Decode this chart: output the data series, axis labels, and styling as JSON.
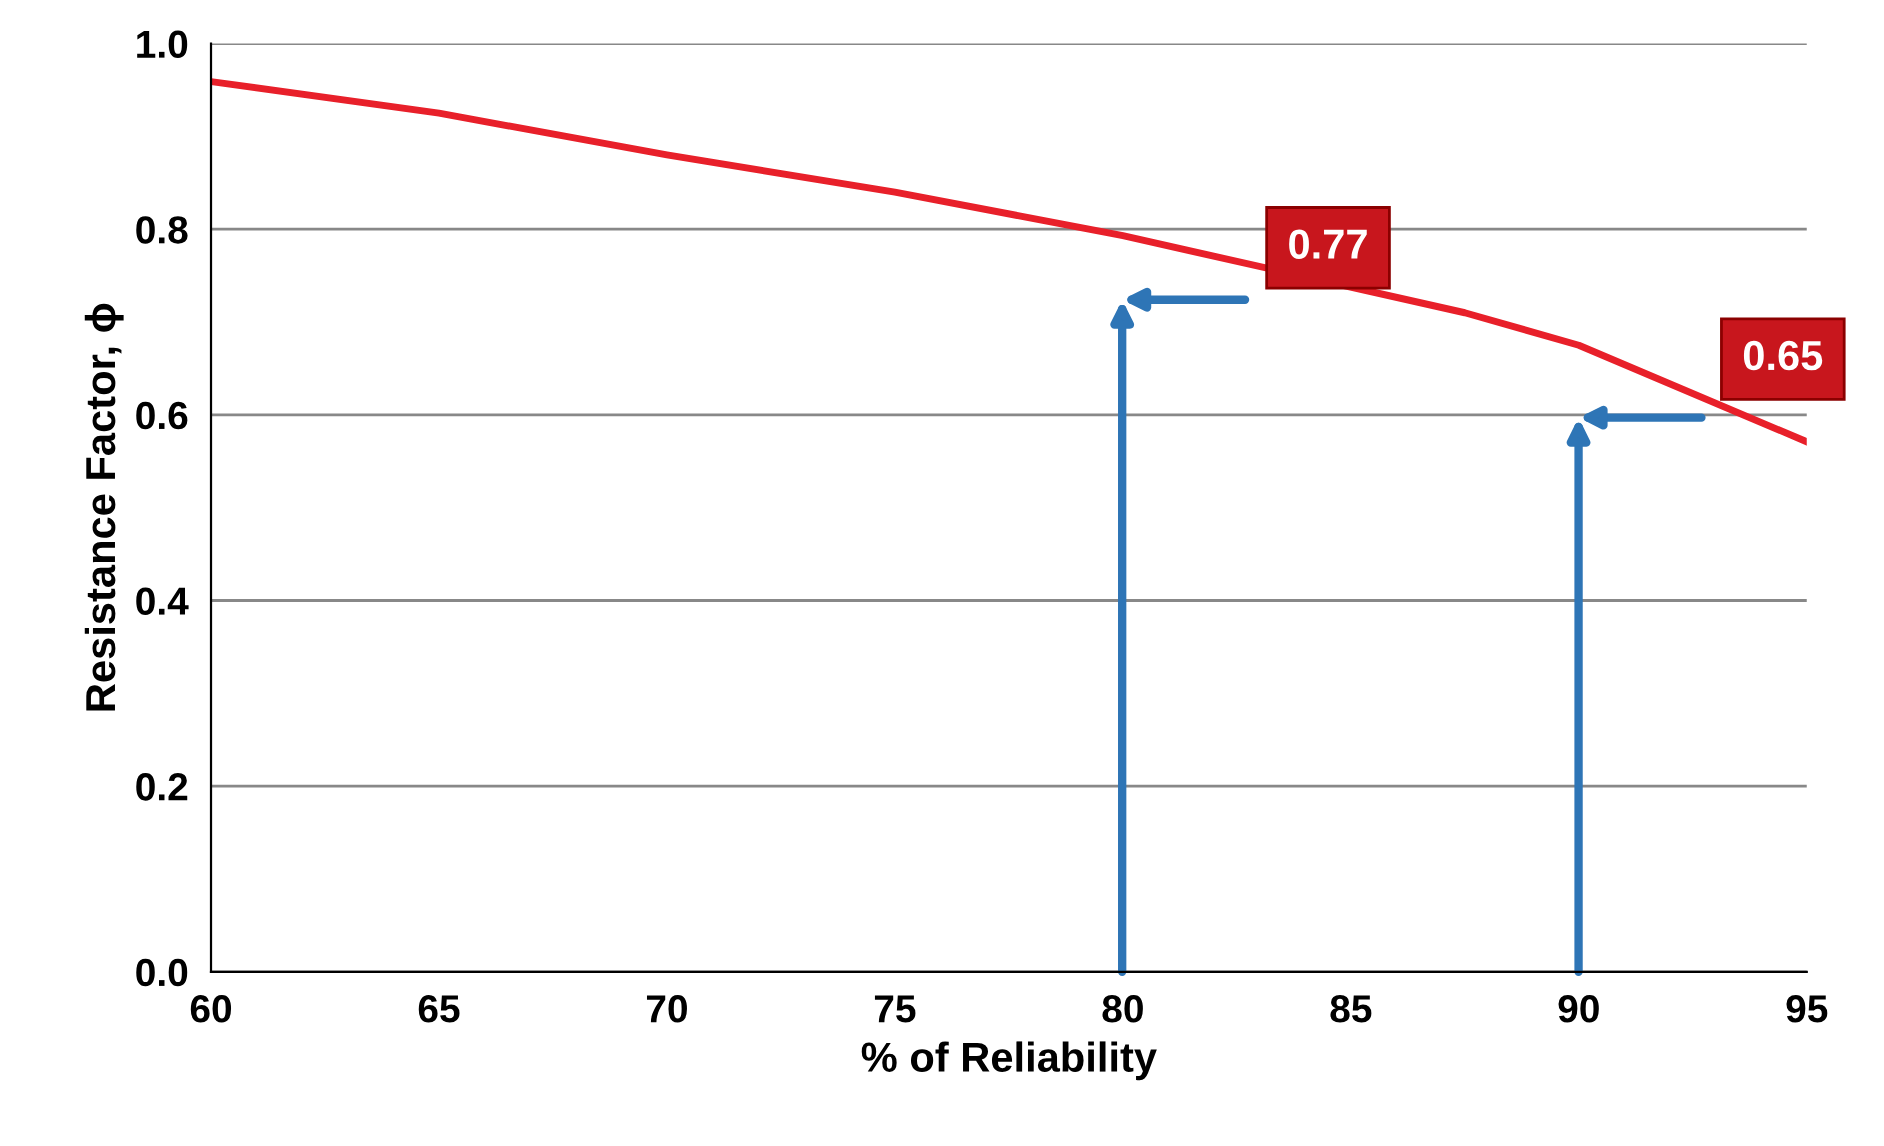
{
  "chart_data": {
    "type": "line",
    "xlabel": "% of Reliability",
    "ylabel": "Resistance Factor, ϕ",
    "x": [
      60,
      65,
      70,
      75,
      80,
      87.5,
      90,
      95
    ],
    "series": [
      {
        "color": "#e8202a",
        "values": [
          0.959,
          0.925,
          0.88,
          0.84,
          0.793,
          0.71,
          0.675,
          0.571
        ]
      }
    ],
    "xlim": [
      60,
      95
    ],
    "xticks": [
      60,
      65,
      70,
      75,
      80,
      85,
      90,
      95
    ],
    "ylim": [
      0,
      1
    ],
    "yticks": [
      {
        "value": 0,
        "label": "0.0"
      },
      0.2,
      0.4,
      0.6,
      0.8,
      {
        "value": 1,
        "label": "1.0"
      }
    ],
    "grid": "y",
    "marker": "none",
    "line_style": "solid",
    "annotations": [
      "0.77",
      "0.65"
    ]
  }
}
